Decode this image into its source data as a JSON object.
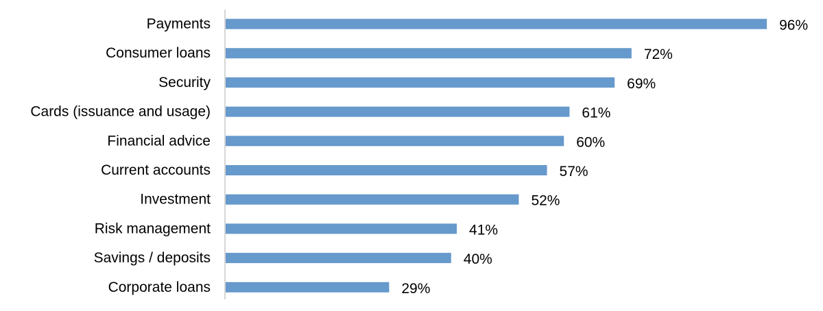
{
  "chart_data": {
    "type": "bar",
    "orientation": "horizontal",
    "categories": [
      "Payments",
      "Consumer loans",
      "Security",
      "Cards (issuance and usage)",
      "Financial advice",
      "Current accounts",
      "Investment",
      "Risk management",
      "Savings / deposits",
      "Corporate loans"
    ],
    "values": [
      96,
      72,
      69,
      61,
      60,
      57,
      52,
      41,
      40,
      29
    ],
    "value_labels": [
      "96%",
      "72%",
      "69%",
      "61%",
      "60%",
      "57%",
      "52%",
      "41%",
      "40%",
      "29%"
    ],
    "unit": "%",
    "xlim": [
      0,
      100
    ],
    "grid": false,
    "legend": "none",
    "bar_color": "#6699cc",
    "axis_color": "#c8c8c8"
  }
}
